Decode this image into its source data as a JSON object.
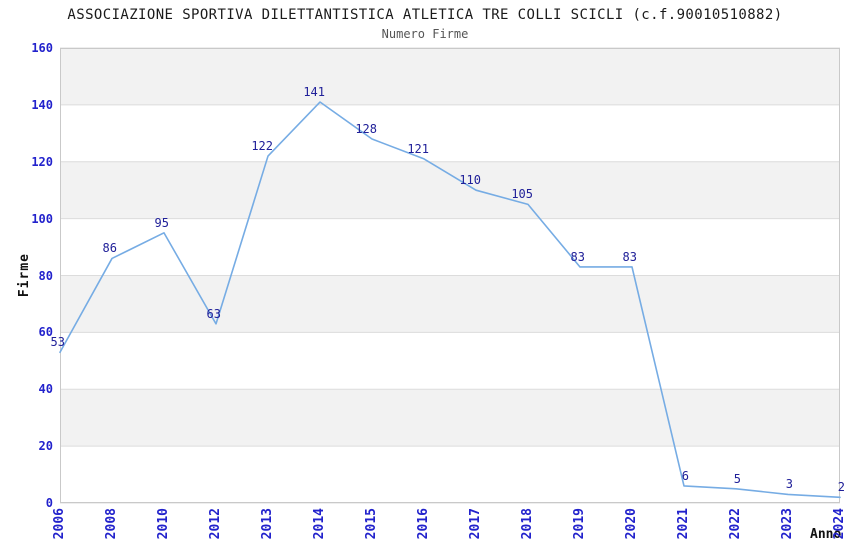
{
  "page": {
    "background": "#ffffff"
  },
  "chart_data": {
    "type": "line",
    "title": "ASSOCIAZIONE SPORTIVA DILETTANTISTICA ATLETICA TRE COLLI SCICLI (c.f.90010510882)",
    "subtitle": "Numero Firme",
    "xlabel": "Anno",
    "ylabel": "Firme",
    "categories": [
      "2006",
      "2008",
      "2010",
      "2012",
      "2013",
      "2014",
      "2015",
      "2016",
      "2017",
      "2018",
      "2019",
      "2020",
      "2021",
      "2022",
      "2023",
      "2024"
    ],
    "series": [
      {
        "name": "Numero Firme",
        "values": [
          53,
          86,
          95,
          63,
          122,
          141,
          128,
          121,
          110,
          105,
          83,
          83,
          6,
          5,
          3,
          2
        ]
      }
    ],
    "ylim": [
      0,
      160
    ],
    "y_ticks": [
      0,
      20,
      40,
      60,
      80,
      100,
      120,
      140,
      160
    ],
    "grid": "horizontal-bands",
    "legend_position": "none",
    "show_data_labels": true,
    "colors": {
      "line": "#76ace4",
      "tick_label": "#2222cc",
      "data_label": "#202099",
      "band": "#f2f2f2",
      "gridline": "#dcdcdc",
      "plot_border": "#c9c9c9",
      "title": "#1a1a1a",
      "subtitle": "#555555",
      "axis_label": "#111111",
      "background": "#ffffff"
    }
  }
}
